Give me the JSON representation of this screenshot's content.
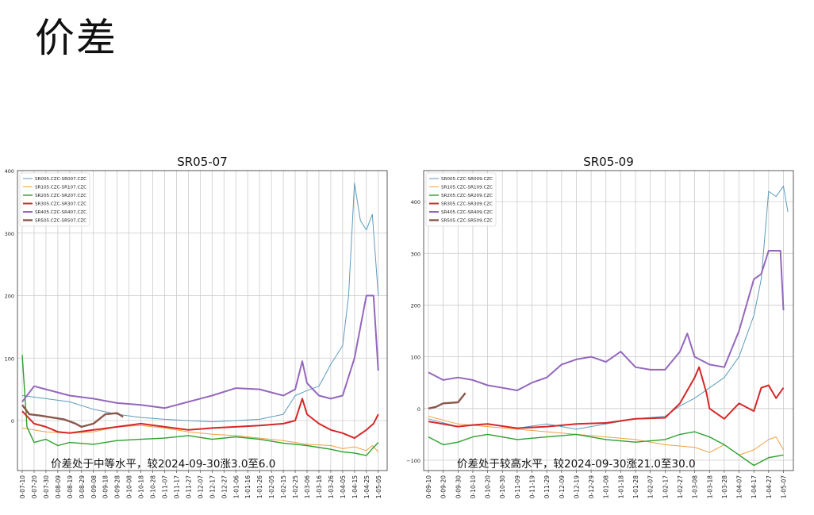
{
  "page": {
    "title": "价差"
  },
  "chart_data": [
    {
      "type": "line",
      "title": "SR05-07",
      "annotation": "价差处于中等水平，较2024-09-30涨3.0至6.0",
      "ylim": [
        -80,
        400
      ],
      "yticks": [
        0,
        100,
        200,
        300,
        400
      ],
      "ytick_labels": [
        "0",
        "100",
        "200",
        "300",
        "400"
      ],
      "grid": true,
      "legend_position": "top-left",
      "xtick_labels": [
        "0-07-10",
        "0-07-20",
        "0-07-30",
        "0-08-09",
        "0-08-19",
        "0-08-29",
        "0-09-08",
        "0-09-18",
        "0-09-28",
        "0-10-08",
        "0-10-18",
        "0-10-28",
        "0-11-07",
        "0-11-17",
        "0-11-27",
        "0-12-07",
        "0-12-17",
        "0-12-27",
        "1-01-06",
        "1-01-16",
        "1-01-26",
        "1-02-05",
        "1-02-15",
        "1-02-25",
        "1-03-06",
        "1-03-16",
        "1-03-26",
        "1-04-05",
        "1-04-15",
        "1-04-25",
        "1-05-05"
      ],
      "series": [
        {
          "name": "SR005.CZC-SR007.CZC",
          "color": "#5b9bbd",
          "width": 1,
          "points": [
            [
              0,
              40
            ],
            [
              2,
              35
            ],
            [
              4,
              30
            ],
            [
              6,
              18
            ],
            [
              8,
              10
            ],
            [
              10,
              5
            ],
            [
              12,
              2
            ],
            [
              14,
              0
            ],
            [
              16,
              -2
            ],
            [
              18,
              0
            ],
            [
              20,
              2
            ],
            [
              22,
              10
            ],
            [
              23,
              40
            ],
            [
              24,
              48
            ],
            [
              25,
              55
            ],
            [
              26,
              90
            ],
            [
              27,
              120
            ],
            [
              27.5,
              200
            ],
            [
              28,
              380
            ],
            [
              28.5,
              320
            ],
            [
              29,
              305
            ],
            [
              29.5,
              330
            ],
            [
              30,
              200
            ]
          ]
        },
        {
          "name": "SR105.CZC-SR107.CZC",
          "color": "#f0a040",
          "width": 1,
          "points": [
            [
              0,
              -12
            ],
            [
              2,
              -18
            ],
            [
              4,
              -20
            ],
            [
              6,
              -18
            ],
            [
              8,
              -10
            ],
            [
              10,
              -8
            ],
            [
              12,
              -12
            ],
            [
              14,
              -18
            ],
            [
              16,
              -22
            ],
            [
              18,
              -24
            ],
            [
              20,
              -28
            ],
            [
              22,
              -32
            ],
            [
              24,
              -38
            ],
            [
              26,
              -40
            ],
            [
              27,
              -45
            ],
            [
              28,
              -42
            ],
            [
              29,
              -48
            ],
            [
              29.5,
              -40
            ],
            [
              30,
              -50
            ]
          ]
        },
        {
          "name": "SR205.CZC-SR207.CZC",
          "color": "#2ca02c",
          "width": 1.4,
          "points": [
            [
              0,
              105
            ],
            [
              0.4,
              -10
            ],
            [
              1,
              -35
            ],
            [
              2,
              -30
            ],
            [
              3,
              -40
            ],
            [
              4,
              -35
            ],
            [
              6,
              -38
            ],
            [
              8,
              -32
            ],
            [
              10,
              -30
            ],
            [
              12,
              -28
            ],
            [
              14,
              -24
            ],
            [
              16,
              -30
            ],
            [
              18,
              -26
            ],
            [
              20,
              -30
            ],
            [
              22,
              -36
            ],
            [
              24,
              -40
            ],
            [
              26,
              -46
            ],
            [
              27,
              -50
            ],
            [
              28,
              -52
            ],
            [
              29,
              -56
            ],
            [
              29.5,
              -45
            ],
            [
              30,
              -35
            ]
          ]
        },
        {
          "name": "SR305.CZC-SR307.CZC",
          "color": "#d62728",
          "width": 2,
          "points": [
            [
              0,
              15
            ],
            [
              1,
              -5
            ],
            [
              2,
              -10
            ],
            [
              3,
              -18
            ],
            [
              4,
              -20
            ],
            [
              6,
              -15
            ],
            [
              8,
              -10
            ],
            [
              10,
              -5
            ],
            [
              12,
              -10
            ],
            [
              14,
              -15
            ],
            [
              16,
              -12
            ],
            [
              18,
              -10
            ],
            [
              20,
              -8
            ],
            [
              22,
              -5
            ],
            [
              23,
              0
            ],
            [
              23.6,
              35
            ],
            [
              24,
              10
            ],
            [
              25,
              -5
            ],
            [
              26,
              -15
            ],
            [
              27,
              -20
            ],
            [
              28,
              -28
            ],
            [
              29,
              -15
            ],
            [
              29.6,
              -5
            ],
            [
              30,
              10
            ]
          ]
        },
        {
          "name": "SR405.CZC-SR407.CZC",
          "color": "#9467bd",
          "width": 2,
          "points": [
            [
              0,
              30
            ],
            [
              1,
              55
            ],
            [
              2,
              50
            ],
            [
              4,
              40
            ],
            [
              6,
              35
            ],
            [
              8,
              28
            ],
            [
              10,
              25
            ],
            [
              12,
              20
            ],
            [
              14,
              30
            ],
            [
              16,
              40
            ],
            [
              18,
              52
            ],
            [
              20,
              50
            ],
            [
              22,
              40
            ],
            [
              23,
              50
            ],
            [
              23.6,
              95
            ],
            [
              24,
              60
            ],
            [
              25,
              40
            ],
            [
              26,
              35
            ],
            [
              27,
              40
            ],
            [
              28,
              100
            ],
            [
              28.5,
              150
            ],
            [
              29,
              200
            ],
            [
              29.6,
              200
            ],
            [
              30,
              80
            ]
          ]
        },
        {
          "name": "SR505.CZC-SR507.CZC",
          "color": "#8c564b",
          "width": 2.4,
          "points": [
            [
              0,
              25
            ],
            [
              0.6,
              10
            ],
            [
              1.5,
              8
            ],
            [
              2.5,
              5
            ],
            [
              3.5,
              2
            ],
            [
              4.5,
              -5
            ],
            [
              5,
              -10
            ],
            [
              6,
              -5
            ],
            [
              7,
              10
            ],
            [
              8,
              12
            ],
            [
              8.5,
              6
            ]
          ]
        }
      ]
    },
    {
      "type": "line",
      "title": "SR05-09",
      "annotation": "价差处于较高水平，较2024-09-30涨21.0至30.0",
      "ylim": [
        -120,
        460
      ],
      "yticks": [
        -100,
        0,
        100,
        200,
        300,
        400
      ],
      "ytick_labels": [
        "−100",
        "0",
        "100",
        "200",
        "300",
        "400"
      ],
      "grid": true,
      "legend_position": "top-left",
      "xtick_labels": [
        "0-09-10",
        "0-09-20",
        "0-09-30",
        "0-10-10",
        "0-10-20",
        "0-10-30",
        "0-11-09",
        "0-11-19",
        "0-11-29",
        "0-12-09",
        "0-12-19",
        "0-12-29",
        "1-01-08",
        "1-01-18",
        "1-01-28",
        "1-02-07",
        "1-02-17",
        "1-02-27",
        "1-03-08",
        "1-03-18",
        "1-03-28",
        "1-04-07",
        "1-04-17",
        "1-04-27",
        "1-05-07"
      ],
      "series": [
        {
          "name": "SR005.CZC-SR009.CZC",
          "color": "#5b9bbd",
          "width": 1,
          "points": [
            [
              0,
              -20
            ],
            [
              2,
              -35
            ],
            [
              4,
              -30
            ],
            [
              6,
              -38
            ],
            [
              8,
              -30
            ],
            [
              10,
              -40
            ],
            [
              12,
              -30
            ],
            [
              14,
              -20
            ],
            [
              16,
              -15
            ],
            [
              17,
              5
            ],
            [
              18,
              20
            ],
            [
              19,
              40
            ],
            [
              20,
              60
            ],
            [
              21,
              100
            ],
            [
              22,
              180
            ],
            [
              22.5,
              250
            ],
            [
              23,
              420
            ],
            [
              23.5,
              410
            ],
            [
              24,
              430
            ],
            [
              24.3,
              380
            ]
          ]
        },
        {
          "name": "SR105.CZC-SR109.CZC",
          "color": "#f0a040",
          "width": 1,
          "points": [
            [
              0,
              -15
            ],
            [
              2,
              -30
            ],
            [
              4,
              -35
            ],
            [
              6,
              -40
            ],
            [
              8,
              -45
            ],
            [
              10,
              -50
            ],
            [
              12,
              -55
            ],
            [
              14,
              -60
            ],
            [
              16,
              -70
            ],
            [
              18,
              -75
            ],
            [
              19,
              -85
            ],
            [
              20,
              -70
            ],
            [
              21,
              -90
            ],
            [
              22,
              -80
            ],
            [
              23,
              -60
            ],
            [
              23.5,
              -55
            ],
            [
              24,
              -80
            ]
          ]
        },
        {
          "name": "SR205.CZC-SR209.CZC",
          "color": "#2ca02c",
          "width": 1.4,
          "points": [
            [
              0,
              -55
            ],
            [
              1,
              -70
            ],
            [
              2,
              -65
            ],
            [
              3,
              -55
            ],
            [
              4,
              -50
            ],
            [
              6,
              -60
            ],
            [
              8,
              -55
            ],
            [
              10,
              -50
            ],
            [
              12,
              -60
            ],
            [
              14,
              -65
            ],
            [
              16,
              -60
            ],
            [
              17,
              -50
            ],
            [
              18,
              -45
            ],
            [
              19,
              -55
            ],
            [
              20,
              -70
            ],
            [
              21,
              -90
            ],
            [
              22,
              -110
            ],
            [
              23,
              -95
            ],
            [
              24,
              -90
            ]
          ]
        },
        {
          "name": "SR305.CZC-SR309.CZC",
          "color": "#d62728",
          "width": 2,
          "points": [
            [
              0,
              -25
            ],
            [
              1,
              -30
            ],
            [
              2,
              -35
            ],
            [
              3,
              -32
            ],
            [
              4,
              -30
            ],
            [
              6,
              -38
            ],
            [
              8,
              -35
            ],
            [
              10,
              -30
            ],
            [
              12,
              -28
            ],
            [
              14,
              -20
            ],
            [
              16,
              -18
            ],
            [
              17,
              10
            ],
            [
              18,
              60
            ],
            [
              18.3,
              80
            ],
            [
              18.8,
              30
            ],
            [
              19,
              0
            ],
            [
              20,
              -20
            ],
            [
              21,
              10
            ],
            [
              22,
              -5
            ],
            [
              22.5,
              40
            ],
            [
              23,
              45
            ],
            [
              23.5,
              20
            ],
            [
              24,
              40
            ]
          ]
        },
        {
          "name": "SR405.CZC-SR409.CZC",
          "color": "#9467bd",
          "width": 2,
          "points": [
            [
              0,
              70
            ],
            [
              1,
              55
            ],
            [
              2,
              60
            ],
            [
              3,
              55
            ],
            [
              4,
              45
            ],
            [
              5,
              40
            ],
            [
              6,
              35
            ],
            [
              7,
              50
            ],
            [
              8,
              60
            ],
            [
              9,
              85
            ],
            [
              10,
              95
            ],
            [
              11,
              100
            ],
            [
              12,
              90
            ],
            [
              13,
              110
            ],
            [
              14,
              80
            ],
            [
              15,
              75
            ],
            [
              16,
              75
            ],
            [
              17,
              110
            ],
            [
              17.5,
              145
            ],
            [
              18,
              100
            ],
            [
              19,
              85
            ],
            [
              20,
              80
            ],
            [
              21,
              150
            ],
            [
              22,
              250
            ],
            [
              22.5,
              260
            ],
            [
              23,
              305
            ],
            [
              23.8,
              305
            ],
            [
              24,
              190
            ]
          ]
        },
        {
          "name": "SR505.CZC-SR509.CZC",
          "color": "#8c564b",
          "width": 2.4,
          "points": [
            [
              0,
              0
            ],
            [
              0.5,
              3
            ],
            [
              1,
              10
            ],
            [
              2,
              12
            ],
            [
              2.5,
              30
            ]
          ]
        }
      ]
    }
  ]
}
